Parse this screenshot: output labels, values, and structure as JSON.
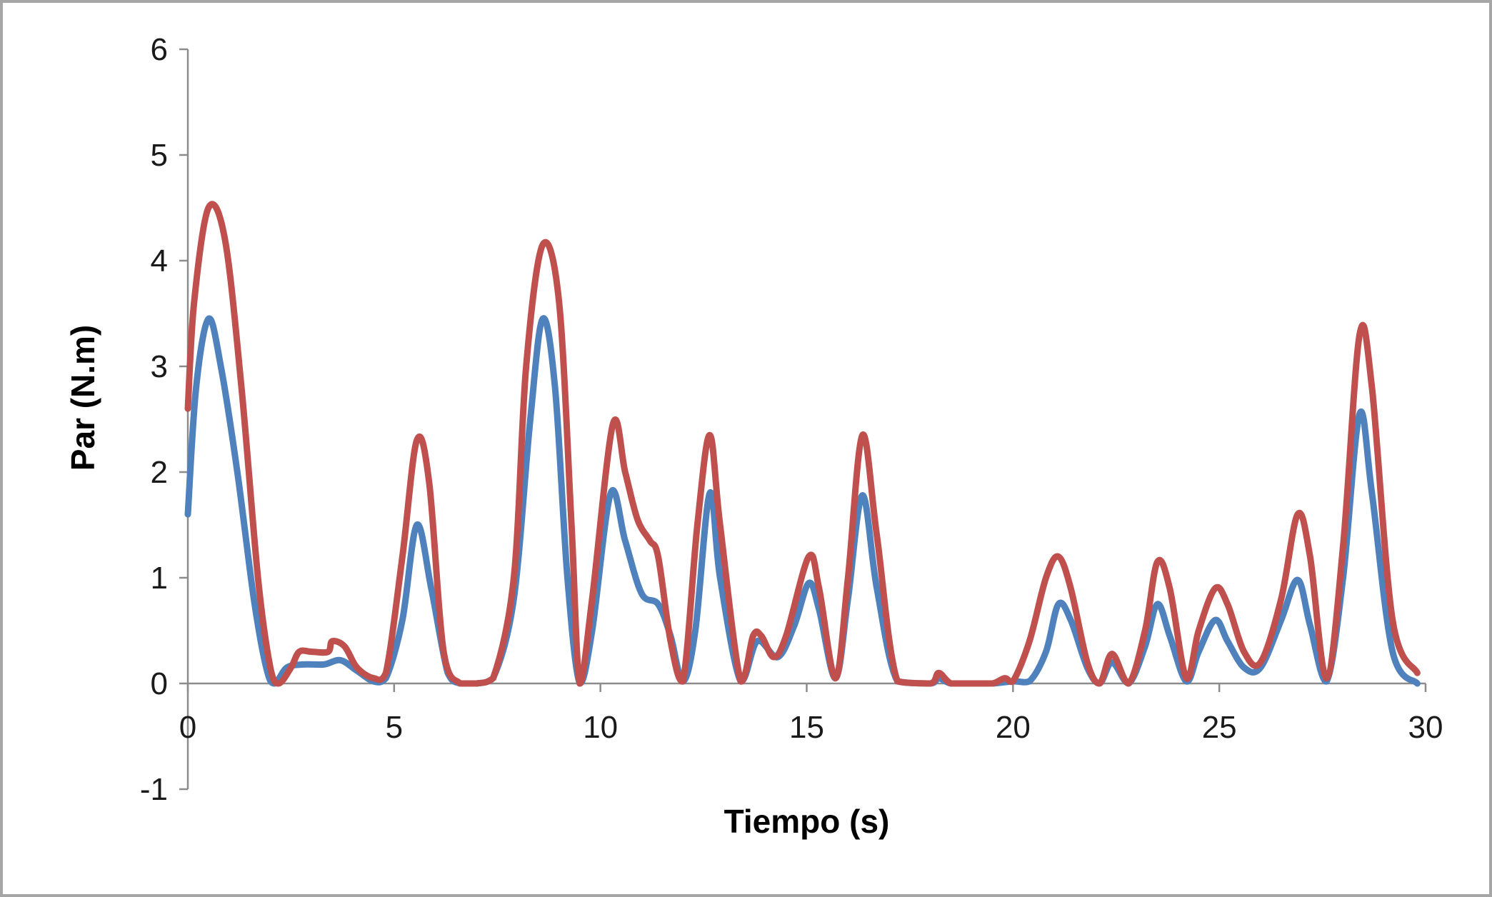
{
  "chart_data": {
    "type": "line",
    "title": "",
    "xlabel": "Tiempo (s)",
    "ylabel": "Par (N.m)",
    "xlim": [
      0,
      30
    ],
    "ylim": [
      -1,
      6
    ],
    "x_ticks": [
      0,
      5,
      10,
      15,
      20,
      25,
      30
    ],
    "y_ticks": [
      -1,
      0,
      1,
      2,
      3,
      4,
      5,
      6
    ],
    "grid": false,
    "legend": "none",
    "series": [
      {
        "color": "#4f81bd",
        "x": [
          0,
          0.2,
          0.5,
          0.8,
          1.2,
          1.6,
          1.9,
          2.1,
          2.4,
          2.8,
          3.3,
          3.7,
          4.1,
          4.5,
          4.8,
          5.2,
          5.55,
          5.9,
          6.3,
          6.6,
          7.0,
          7.4,
          7.9,
          8.3,
          8.6,
          8.9,
          9.2,
          9.5,
          9.8,
          10.25,
          10.6,
          11.0,
          11.4,
          11.7,
          12.0,
          12.3,
          12.65,
          12.9,
          13.4,
          13.8,
          14.3,
          14.7,
          15.05,
          15.3,
          15.7,
          16.0,
          16.35,
          16.7,
          17.2,
          18.0,
          18.2,
          18.5,
          19.0,
          19.5,
          20.0,
          20.4,
          20.8,
          21.1,
          21.4,
          21.8,
          22.1,
          22.4,
          22.8,
          23.2,
          23.5,
          23.8,
          24.2,
          24.5,
          24.9,
          25.2,
          25.6,
          26.0,
          26.5,
          26.9,
          27.2,
          27.6,
          28.0,
          28.4,
          28.7,
          29.2,
          29.8
        ],
        "y": [
          1.6,
          2.8,
          3.45,
          3.0,
          2.0,
          0.8,
          0.15,
          0.0,
          0.15,
          0.18,
          0.18,
          0.22,
          0.12,
          0.02,
          0.05,
          0.6,
          1.5,
          0.9,
          0.1,
          0.0,
          0.0,
          0.05,
          0.8,
          2.5,
          3.45,
          2.8,
          1.0,
          0.0,
          0.5,
          1.8,
          1.35,
          0.85,
          0.75,
          0.45,
          0.02,
          0.5,
          1.8,
          1.0,
          0.02,
          0.4,
          0.25,
          0.55,
          0.95,
          0.7,
          0.05,
          0.8,
          1.78,
          0.9,
          0.02,
          0.0,
          0.05,
          0.0,
          0.0,
          0.0,
          0.02,
          0.02,
          0.3,
          0.75,
          0.6,
          0.15,
          0.0,
          0.2,
          0.0,
          0.35,
          0.75,
          0.45,
          0.02,
          0.3,
          0.6,
          0.4,
          0.15,
          0.15,
          0.6,
          0.98,
          0.55,
          0.02,
          1.0,
          2.55,
          1.8,
          0.3,
          0.0
        ]
      },
      {
        "color": "#c0504d",
        "x": [
          0,
          0.15,
          0.5,
          0.9,
          1.3,
          1.7,
          2.0,
          2.2,
          2.5,
          2.7,
          3.0,
          3.4,
          3.5,
          3.8,
          4.1,
          4.5,
          4.8,
          5.2,
          5.55,
          5.85,
          6.2,
          6.6,
          7.0,
          7.4,
          7.9,
          8.2,
          8.6,
          9.0,
          9.3,
          9.5,
          9.8,
          10.3,
          10.6,
          10.9,
          11.2,
          11.4,
          11.7,
          12.0,
          12.35,
          12.65,
          12.9,
          13.4,
          13.7,
          13.9,
          14.2,
          14.5,
          15.05,
          15.3,
          15.7,
          16.0,
          16.35,
          16.7,
          17.2,
          18.0,
          18.2,
          18.5,
          19.0,
          19.5,
          19.8,
          20.0,
          20.4,
          20.8,
          21.1,
          21.4,
          21.8,
          22.1,
          22.4,
          22.8,
          23.2,
          23.5,
          23.8,
          24.2,
          24.5,
          24.9,
          25.2,
          25.6,
          26.0,
          26.5,
          26.9,
          27.2,
          27.6,
          28.0,
          28.4,
          28.7,
          29.2,
          29.8
        ],
        "y": [
          2.6,
          3.6,
          4.5,
          4.2,
          2.8,
          1.0,
          0.15,
          0.0,
          0.15,
          0.3,
          0.3,
          0.3,
          0.4,
          0.35,
          0.15,
          0.05,
          0.1,
          1.2,
          2.3,
          1.9,
          0.3,
          0.0,
          0.0,
          0.05,
          1.0,
          3.0,
          4.15,
          3.6,
          1.5,
          0.0,
          0.8,
          2.45,
          2.0,
          1.55,
          1.35,
          1.2,
          0.4,
          0.02,
          1.5,
          2.35,
          1.5,
          0.02,
          0.45,
          0.45,
          0.25,
          0.45,
          1.2,
          0.9,
          0.05,
          1.0,
          2.35,
          1.4,
          0.02,
          0.0,
          0.1,
          0.0,
          0.0,
          0.0,
          0.05,
          0.02,
          0.4,
          1.0,
          1.2,
          0.9,
          0.2,
          0.0,
          0.28,
          0.0,
          0.5,
          1.15,
          0.9,
          0.05,
          0.5,
          0.9,
          0.75,
          0.3,
          0.2,
          0.8,
          1.6,
          1.2,
          0.05,
          1.3,
          3.3,
          2.8,
          0.6,
          0.1
        ]
      }
    ]
  }
}
